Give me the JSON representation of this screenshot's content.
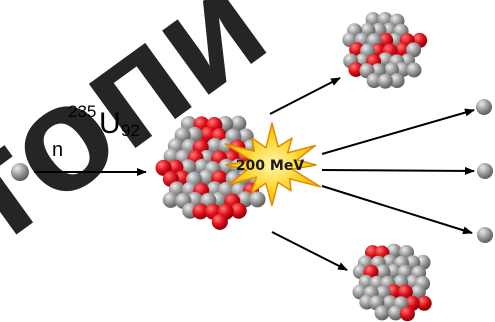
{
  "watermark": {
    "text": "топи",
    "color": "#000000"
  },
  "neutron_label": "n",
  "isotope": {
    "mass_number": "235",
    "symbol": "U",
    "atomic_number": "92"
  },
  "energy_label": "200 MeV",
  "colors": {
    "proton": "#e0101a",
    "neutron": "#8c8c8c",
    "burst_fill": "#ffd21f",
    "burst_stroke": "#e08a00",
    "arrow": "#000000"
  }
}
